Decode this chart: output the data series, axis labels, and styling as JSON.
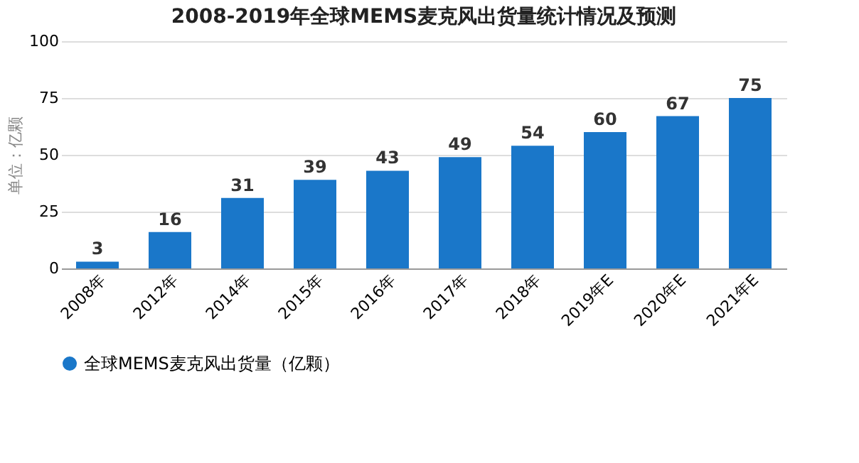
{
  "chart_data": {
    "type": "bar",
    "title": "2008-2019年全球MEMS麦克风出货量统计情况及预测",
    "ylabel": "单位：亿颗",
    "categories": [
      "2008年",
      "2012年",
      "2014年",
      "2015年",
      "2016年",
      "2017年",
      "2018年",
      "2019年E",
      "2020年E",
      "2021年E"
    ],
    "series": [
      {
        "name": "全球MEMS麦克风出货量（亿颗）",
        "color": "#1a77c9",
        "values": [
          3,
          16,
          31,
          39,
          43,
          49,
          54,
          60,
          67,
          75
        ]
      }
    ],
    "ylim": [
      0,
      100
    ],
    "yticks": [
      0,
      25,
      50,
      75,
      100
    ],
    "grid": "y",
    "legend": "bottom",
    "data_labels": true
  }
}
